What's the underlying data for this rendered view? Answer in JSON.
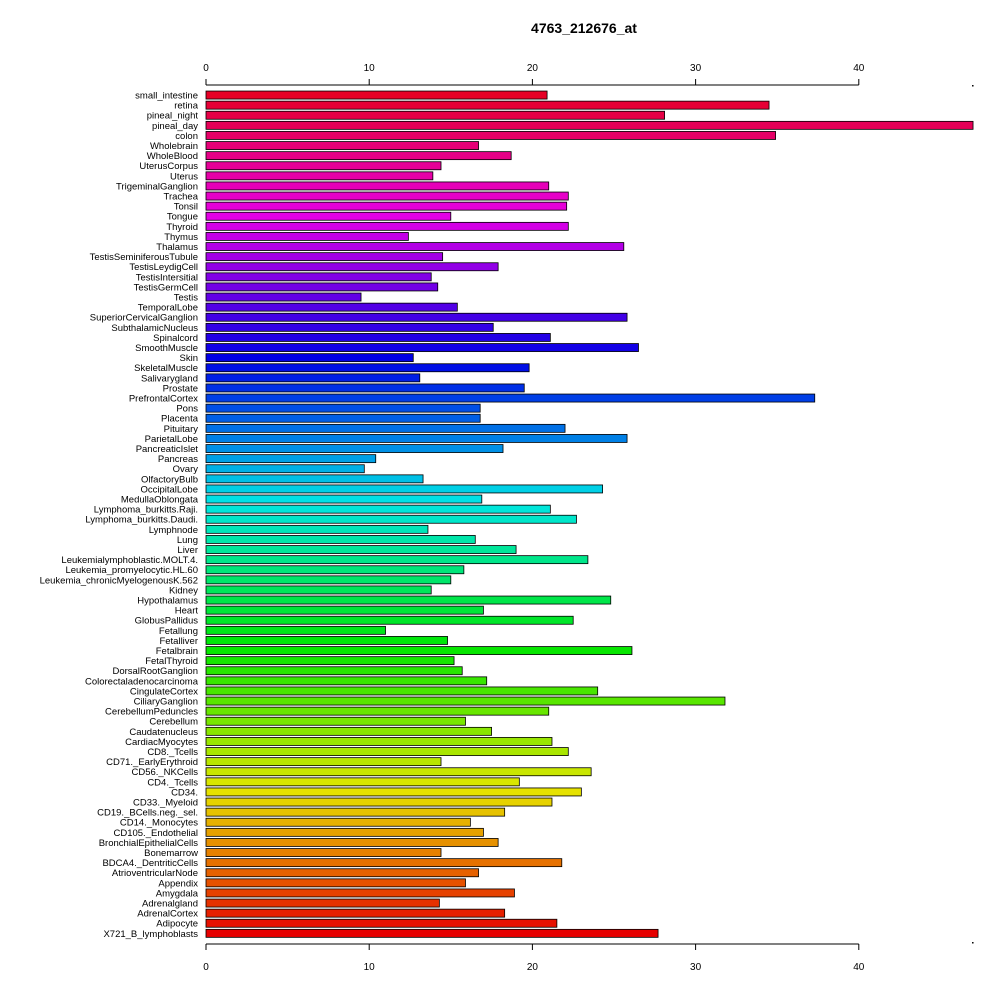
{
  "chart_data": {
    "type": "bar",
    "orientation": "horizontal",
    "title": "4763_212676_at",
    "xlabel": "",
    "ylabel": "",
    "xlim": [
      0,
      47
    ],
    "ticks": [
      0,
      10,
      20,
      30,
      40
    ],
    "tick_labels": [
      "0",
      "10",
      "20",
      "30",
      "40"
    ],
    "axes": [
      "top",
      "bottom"
    ],
    "grid": false,
    "legend": "none",
    "colors": "rainbow gradient from red (top) through magenta, blue, cyan, green, yellow, orange to red (bottom)",
    "categories": [
      "small_intestine",
      "retina",
      "pineal_night",
      "pineal_day",
      "colon",
      "Wholebrain",
      "WholeBlood",
      "UterusCorpus",
      "Uterus",
      "TrigeminalGanglion",
      "Trachea",
      "Tonsil",
      "Tongue",
      "Thyroid",
      "Thymus",
      "Thalamus",
      "TestisSeminiferousTubule",
      "TestisLeydigCell",
      "TestisIntersitial",
      "TestisGermCell",
      "Testis",
      "TemporalLobe",
      "SuperiorCervicalGanglion",
      "SubthalamicNucleus",
      "Spinalcord",
      "SmoothMuscle",
      "Skin",
      "SkeletalMuscle",
      "Salivarygland",
      "Prostate",
      "PrefrontalCortex",
      "Pons",
      "Placenta",
      "Pituitary",
      "ParietalLobe",
      "PancreaticIslet",
      "Pancreas",
      "Ovary",
      "OlfactoryBulb",
      "OccipitalLobe",
      "MedullaOblongata",
      "Lymphoma_burkitts.Raji.",
      "Lymphoma_burkitts.Daudi.",
      "Lymphnode",
      "Lung",
      "Liver",
      "Leukemialymphoblastic.MOLT.4.",
      "Leukemia_promyelocytic.HL.60",
      "Leukemia_chronicMyelogenousK.562",
      "Kidney",
      "Hypothalamus",
      "Heart",
      "GlobusPallidus",
      "Fetallung",
      "Fetalliver",
      "Fetalbrain",
      "FetalThyroid",
      "DorsalRootGanglion",
      "Colorectaladenocarcinoma",
      "CingulateCortex",
      "CiliaryGanglion",
      "CerebellumPeduncles",
      "Cerebellum",
      "Caudatenucleus",
      "CardiacMyocytes",
      "CD8._Tcells",
      "CD71._EarlyErythroid",
      "CD56._NKCells",
      "CD4._Tcells",
      "CD34.",
      "CD33._Myeloid",
      "CD19._BCells.neg._sel.",
      "CD14._Monocytes",
      "CD105._Endothelial",
      "BronchialEpithelialCells",
      "Bonemarrow",
      "BDCA4._DentriticCells",
      "AtrioventricularNode",
      "Appendix",
      "Amygdala",
      "Adrenalgland",
      "AdrenalCortex",
      "Adipocyte",
      "X721_B_lymphoblasts"
    ],
    "values": [
      20.9,
      34.5,
      28.1,
      47.0,
      34.9,
      16.7,
      18.7,
      14.4,
      13.9,
      21.0,
      22.2,
      22.1,
      15.0,
      22.2,
      12.4,
      25.6,
      14.5,
      17.9,
      13.8,
      14.2,
      9.5,
      15.4,
      25.8,
      17.6,
      21.1,
      26.5,
      12.7,
      19.8,
      13.1,
      19.5,
      37.3,
      16.8,
      16.8,
      22.0,
      25.8,
      18.2,
      10.4,
      9.7,
      13.3,
      24.3,
      16.9,
      21.1,
      22.7,
      13.6,
      16.5,
      19.0,
      23.4,
      15.8,
      15.0,
      13.8,
      24.8,
      17.0,
      22.5,
      11.0,
      14.8,
      26.1,
      15.2,
      15.7,
      17.2,
      24.0,
      31.8,
      21.0,
      15.9,
      17.5,
      21.2,
      22.2,
      14.4,
      23.6,
      19.2,
      23.0,
      21.2,
      18.3,
      16.2,
      17.0,
      17.9,
      14.4,
      21.8,
      16.7,
      15.9,
      18.9,
      14.3,
      18.3,
      21.5,
      27.7
    ]
  }
}
